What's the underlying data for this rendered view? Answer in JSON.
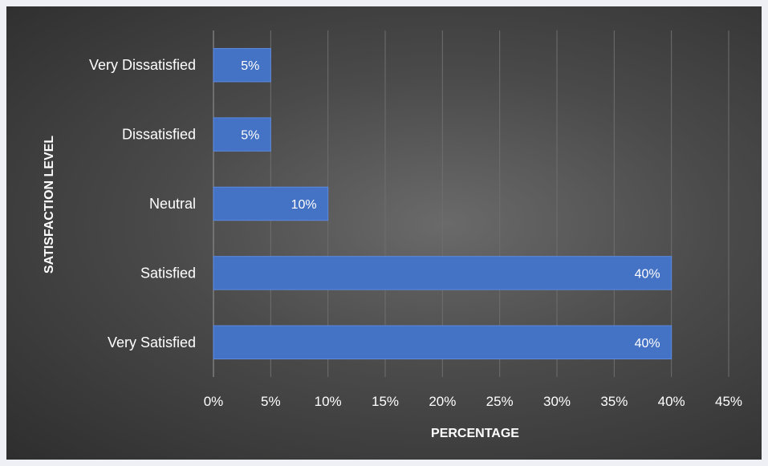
{
  "chart_data": {
    "type": "bar",
    "orientation": "horizontal",
    "categories": [
      "Very Dissatisfied",
      "Dissatisfied",
      "Neutral",
      "Satisfied",
      "Very Satisfied"
    ],
    "values": [
      5,
      5,
      10,
      40,
      40
    ],
    "data_labels": [
      "5%",
      "5%",
      "10%",
      "40%",
      "40%"
    ],
    "xlabel": "PERCENTAGE",
    "ylabel": "SATISFACTION LEVEL",
    "xlim": [
      0,
      45
    ],
    "x_ticks": [
      0,
      5,
      10,
      15,
      20,
      25,
      30,
      35,
      40,
      45
    ],
    "x_tick_labels": [
      "0%",
      "5%",
      "10%",
      "15%",
      "20%",
      "25%",
      "30%",
      "35%",
      "40%",
      "45%"
    ],
    "grid": "vertical",
    "legend": "none",
    "colors": {
      "bar": "#4472c4",
      "bar_stroke": "#5b8ae0",
      "text": "#ffffff",
      "grid": "#6e6e6e",
      "background_center": "#6a6a6a",
      "background_edge": "#2e2e2e",
      "page_background": "#eef0f6"
    }
  }
}
